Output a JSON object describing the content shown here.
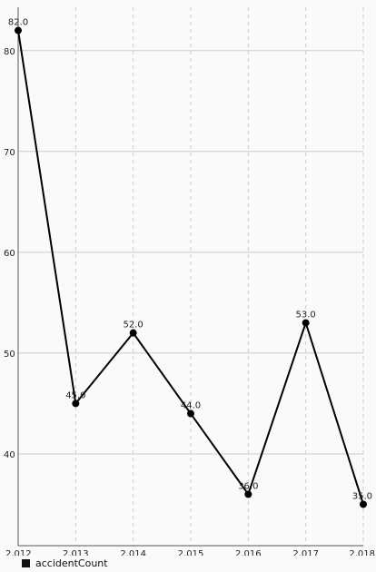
{
  "chart_data": {
    "type": "line",
    "x": [
      2012,
      2013,
      2014,
      2015,
      2016,
      2017,
      2018
    ],
    "x_tick_labels": [
      "2,012",
      "2,013",
      "2,014",
      "2,015",
      "2,016",
      "2,017",
      "2,018"
    ],
    "series": [
      {
        "name": "accidentCount",
        "values": [
          82,
          45,
          52,
          44,
          36,
          53,
          35
        ],
        "data_labels": [
          "82.0",
          "45.0",
          "52.0",
          "44.0",
          "36.0",
          "53.0",
          "35.0"
        ],
        "color": "#000000"
      }
    ],
    "y_ticks": [
      40,
      50,
      60,
      70,
      80
    ],
    "y_tick_labels": [
      "40",
      "50",
      "60",
      "70",
      "80"
    ],
    "xlim": [
      2012,
      2018
    ],
    "ylim": [
      30.9,
      84.3
    ],
    "grid": {
      "horizontal": true,
      "vertical": true
    },
    "legend_position": "bottom-left",
    "title": "",
    "xlabel": "",
    "ylabel": ""
  },
  "colors": {
    "background": "#fafafa",
    "line": "#000000",
    "grid": "#cccccc",
    "axis": "#555555",
    "text": "#222222"
  }
}
